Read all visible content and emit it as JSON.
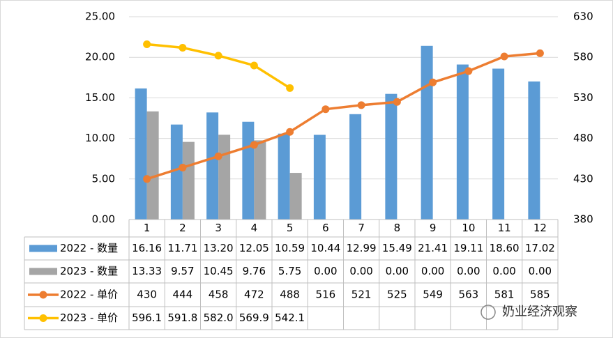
{
  "chart_data": {
    "type": "bar-line-table",
    "categories": [
      "1",
      "2",
      "3",
      "4",
      "5",
      "6",
      "7",
      "8",
      "9",
      "10",
      "11",
      "12"
    ],
    "series": [
      {
        "name": "2022 - 数量",
        "type": "bar",
        "color": "#5b9bd5",
        "values": [
          16.16,
          11.71,
          13.2,
          12.05,
          10.59,
          10.44,
          12.99,
          15.49,
          21.41,
          19.11,
          18.6,
          17.02
        ],
        "value_labels": [
          "16.16",
          "11.71",
          "13.20",
          "12.05",
          "10.59",
          "10.44",
          "12.99",
          "15.49",
          "21.41",
          "19.11",
          "18.60",
          "17.02"
        ]
      },
      {
        "name": "2023 - 数量",
        "type": "bar",
        "color": "#a5a5a5",
        "values": [
          13.33,
          9.57,
          10.45,
          9.76,
          5.75,
          0,
          0,
          0,
          0,
          0,
          0,
          0
        ],
        "value_labels": [
          "13.33",
          "9.57",
          "10.45",
          "9.76",
          "5.75",
          "0.00",
          "0.00",
          "0.00",
          "0.00",
          "0.00",
          "0.00",
          "0.00"
        ]
      },
      {
        "name": "2022 - 单价",
        "type": "line",
        "axis": "y2",
        "color": "#ed7d31",
        "values": [
          430,
          444,
          458,
          472,
          488,
          516,
          521,
          525,
          549,
          563,
          581,
          585
        ],
        "value_labels": [
          "430",
          "444",
          "458",
          "472",
          "488",
          "516",
          "521",
          "525",
          "549",
          "563",
          "581",
          "585"
        ]
      },
      {
        "name": "2023 - 单价",
        "type": "line",
        "axis": "y2",
        "color": "#ffc000",
        "values": [
          596.1,
          591.8,
          582.0,
          569.9,
          542.1,
          null,
          null,
          null,
          null,
          null,
          null,
          null
        ],
        "value_labels": [
          "596.1",
          "591.8",
          "582.0",
          "569.9",
          "542.1",
          null,
          null,
          null,
          null,
          null,
          null,
          null
        ]
      }
    ],
    "ylim": [
      0,
      25
    ],
    "yticks": [
      {
        "value": 0,
        "label": "0.00"
      },
      {
        "value": 5,
        "label": "5.00"
      },
      {
        "value": 10,
        "label": "10.00"
      },
      {
        "value": 15,
        "label": "15.00"
      },
      {
        "value": 20,
        "label": "20.00"
      },
      {
        "value": 25,
        "label": "25.00"
      }
    ],
    "y2lim": [
      380,
      630
    ],
    "y2ticks": [
      380,
      430,
      480,
      530,
      580,
      630
    ],
    "grid": true,
    "watermark": "奶业经济观察"
  }
}
